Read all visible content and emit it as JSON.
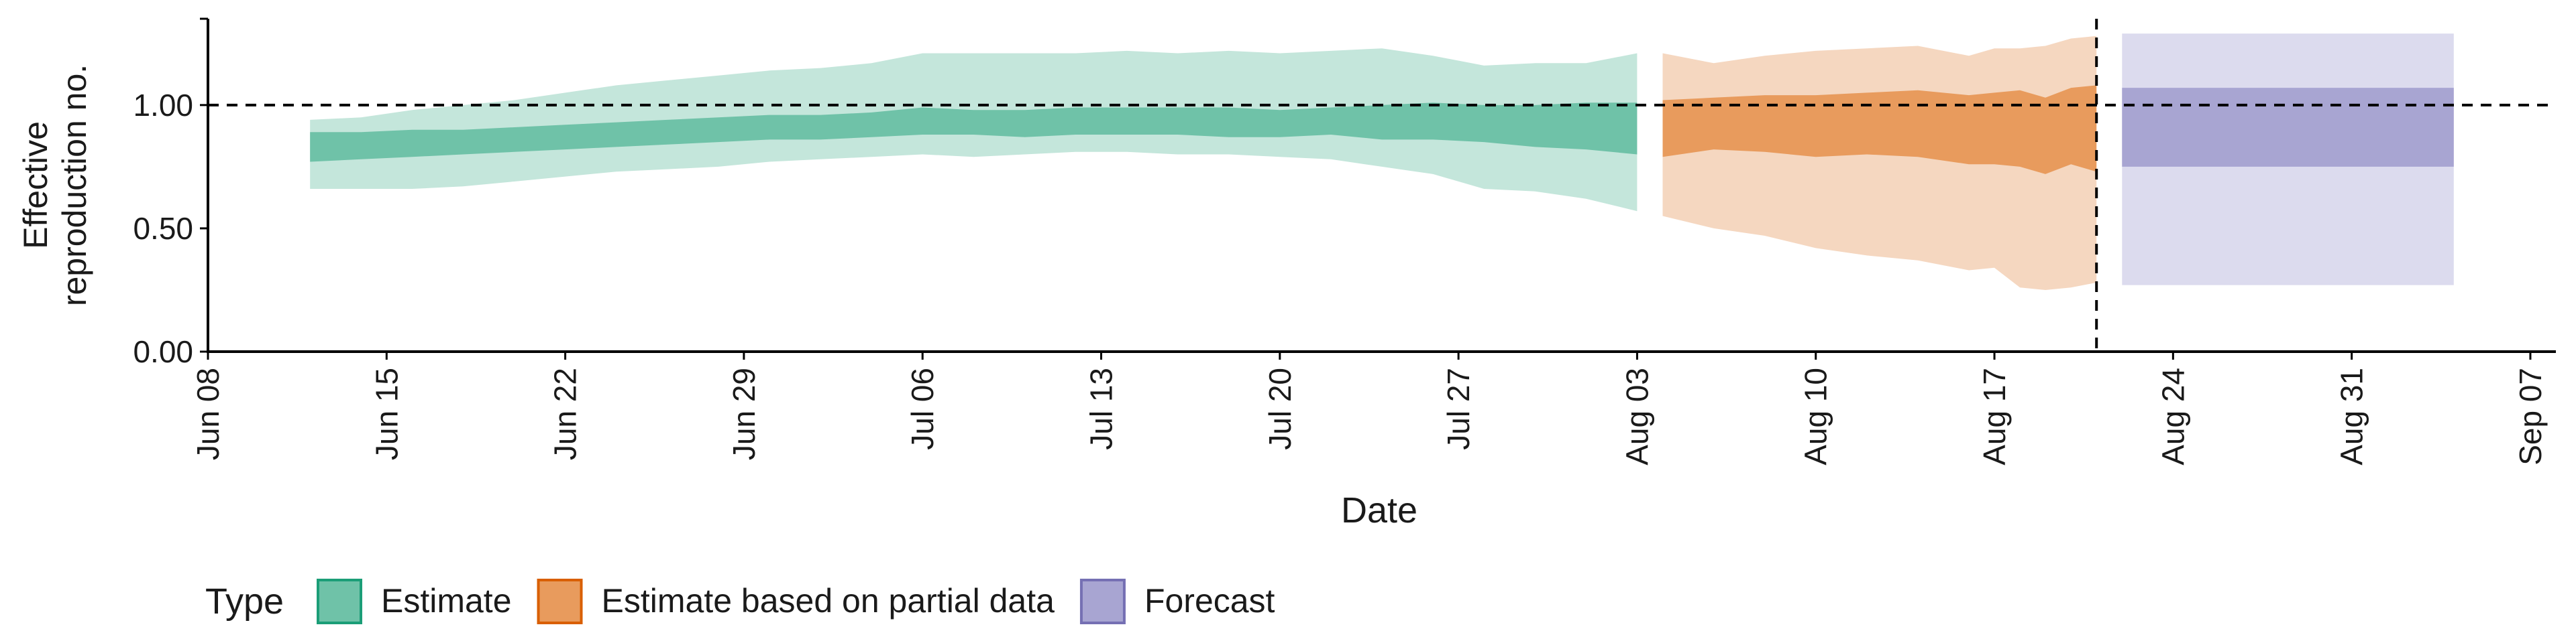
{
  "chart_data": {
    "type": "area",
    "title": "",
    "xlabel": "Date",
    "ylabel": "Effective reproduction no.",
    "ylabel_lines": [
      "Effective",
      "reproduction no."
    ],
    "xlim": [
      "2020-06-08",
      "2020-09-08"
    ],
    "ylim": [
      0,
      1.35
    ],
    "x_ticks": [
      {
        "date": "2020-06-08",
        "label": "Jun 08"
      },
      {
        "date": "2020-06-15",
        "label": "Jun 15"
      },
      {
        "date": "2020-06-22",
        "label": "Jun 22"
      },
      {
        "date": "2020-06-29",
        "label": "Jun 29"
      },
      {
        "date": "2020-07-06",
        "label": "Jul 06"
      },
      {
        "date": "2020-07-13",
        "label": "Jul 13"
      },
      {
        "date": "2020-07-20",
        "label": "Jul 20"
      },
      {
        "date": "2020-07-27",
        "label": "Jul 27"
      },
      {
        "date": "2020-08-03",
        "label": "Aug 03"
      },
      {
        "date": "2020-08-10",
        "label": "Aug 10"
      },
      {
        "date": "2020-08-17",
        "label": "Aug 17"
      },
      {
        "date": "2020-08-24",
        "label": "Aug 24"
      },
      {
        "date": "2020-08-31",
        "label": "Aug 31"
      },
      {
        "date": "2020-09-07",
        "label": "Sep 07"
      }
    ],
    "y_ticks": [
      {
        "value": 0,
        "label": "0.00"
      },
      {
        "value": 0.5,
        "label": "0.50"
      },
      {
        "value": 1,
        "label": "1.00"
      },
      {
        "value": 1.35,
        "label": ""
      }
    ],
    "reference_lines": {
      "horizontal_y": 1.0,
      "vertical_date": "2020-08-21"
    },
    "legend": {
      "title": "Type",
      "position": "bottom-left",
      "entries": [
        {
          "label": "Estimate",
          "fill": "#6fc2a8",
          "border": "#1b9e77"
        },
        {
          "label": "Estimate based on partial data",
          "fill": "#e89b5d",
          "border": "#d95f02"
        },
        {
          "label": "Forecast",
          "fill": "#a8a5d2",
          "border": "#7570b3"
        }
      ]
    },
    "series": [
      {
        "name": "Estimate",
        "outer_color": "#c4e6db",
        "inner_color": "#6fc2a8",
        "dates": [
          "2020-06-12",
          "2020-06-14",
          "2020-06-16",
          "2020-06-18",
          "2020-06-20",
          "2020-06-22",
          "2020-06-24",
          "2020-06-26",
          "2020-06-28",
          "2020-06-30",
          "2020-07-02",
          "2020-07-04",
          "2020-07-06",
          "2020-07-08",
          "2020-07-10",
          "2020-07-12",
          "2020-07-14",
          "2020-07-16",
          "2020-07-18",
          "2020-07-20",
          "2020-07-22",
          "2020-07-24",
          "2020-07-26",
          "2020-07-28",
          "2020-07-30",
          "2020-08-01",
          "2020-08-03"
        ],
        "lower90": [
          0.66,
          0.66,
          0.66,
          0.67,
          0.69,
          0.71,
          0.73,
          0.74,
          0.75,
          0.77,
          0.78,
          0.79,
          0.8,
          0.79,
          0.8,
          0.81,
          0.81,
          0.8,
          0.8,
          0.79,
          0.78,
          0.75,
          0.72,
          0.66,
          0.65,
          0.62,
          0.57
        ],
        "upper90": [
          0.94,
          0.95,
          0.98,
          1.0,
          1.02,
          1.05,
          1.08,
          1.1,
          1.12,
          1.14,
          1.15,
          1.17,
          1.21,
          1.21,
          1.21,
          1.21,
          1.22,
          1.21,
          1.22,
          1.21,
          1.22,
          1.23,
          1.2,
          1.16,
          1.17,
          1.17,
          1.21
        ],
        "lower50": [
          0.77,
          0.78,
          0.79,
          0.8,
          0.81,
          0.82,
          0.83,
          0.84,
          0.85,
          0.86,
          0.86,
          0.87,
          0.88,
          0.88,
          0.87,
          0.88,
          0.88,
          0.88,
          0.87,
          0.87,
          0.88,
          0.86,
          0.86,
          0.85,
          0.83,
          0.82,
          0.8
        ],
        "upper50": [
          0.89,
          0.89,
          0.9,
          0.9,
          0.91,
          0.92,
          0.93,
          0.94,
          0.95,
          0.96,
          0.96,
          0.97,
          0.99,
          0.98,
          0.98,
          0.99,
          0.99,
          0.99,
          0.99,
          0.98,
          0.99,
          1.0,
          1.01,
          1.0,
          1.0,
          1.01,
          1.01
        ]
      },
      {
        "name": "Estimate based on partial data",
        "outer_color": "#f5d7c0",
        "inner_color": "#e89b5d",
        "dates": [
          "2020-08-04",
          "2020-08-06",
          "2020-08-08",
          "2020-08-10",
          "2020-08-12",
          "2020-08-14",
          "2020-08-16",
          "2020-08-17",
          "2020-08-18",
          "2020-08-19",
          "2020-08-20",
          "2020-08-21"
        ],
        "lower90": [
          0.55,
          0.5,
          0.47,
          0.42,
          0.39,
          0.37,
          0.33,
          0.34,
          0.26,
          0.25,
          0.26,
          0.28
        ],
        "upper90": [
          1.21,
          1.17,
          1.2,
          1.22,
          1.23,
          1.24,
          1.2,
          1.23,
          1.23,
          1.24,
          1.27,
          1.28
        ],
        "lower50": [
          0.79,
          0.82,
          0.81,
          0.79,
          0.8,
          0.79,
          0.76,
          0.76,
          0.75,
          0.72,
          0.76,
          0.73
        ],
        "upper50": [
          1.02,
          1.03,
          1.04,
          1.04,
          1.05,
          1.06,
          1.04,
          1.05,
          1.06,
          1.03,
          1.07,
          1.08
        ]
      },
      {
        "name": "Forecast",
        "outer_color": "#dcdbee",
        "inner_color": "#a8a5d2",
        "dates": [
          "2020-08-22",
          "2020-09-04"
        ],
        "lower90": [
          0.27,
          0.27
        ],
        "upper90": [
          1.29,
          1.29
        ],
        "lower50": [
          0.75,
          0.75
        ],
        "upper50": [
          1.07,
          1.07
        ]
      }
    ]
  }
}
